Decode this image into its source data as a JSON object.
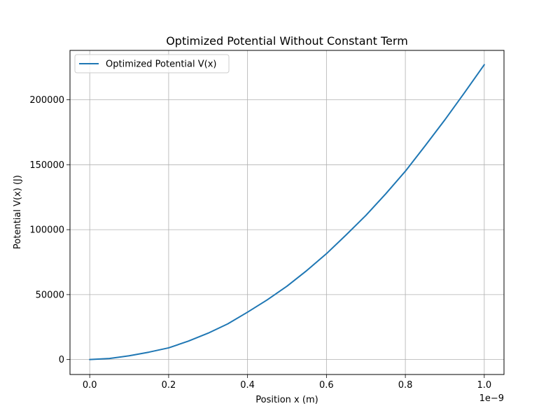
{
  "chart_data": {
    "type": "line",
    "title": "Optimized Potential Without Constant Term",
    "xlabel": "Position x (m)",
    "ylabel": "Potential V(x) (J)",
    "x_offset_label": "1e−9",
    "xlim": [
      -5e-11,
      1.05e-09
    ],
    "ylim": [
      -11500,
      238000
    ],
    "xticks": [
      0.0,
      2e-10,
      4e-10,
      6e-10,
      8e-10,
      1e-09
    ],
    "xtick_labels": [
      "0.0",
      "0.2",
      "0.4",
      "0.6",
      "0.8",
      "1.0"
    ],
    "yticks": [
      0,
      50000,
      100000,
      150000,
      200000
    ],
    "ytick_labels": [
      "0",
      "50000",
      "100000",
      "150000",
      "200000"
    ],
    "grid": true,
    "legend_position": "upper-left",
    "series": [
      {
        "name": "Optimized Potential V(x)",
        "color": "#1f77b4",
        "x": [
          0.0,
          5e-11,
          1e-10,
          1.5e-10,
          2e-10,
          2.5e-10,
          3e-10,
          3.5e-10,
          4e-10,
          4.5e-10,
          5e-10,
          5.5e-10,
          6e-10,
          6.5e-10,
          7e-10,
          7.5e-10,
          8e-10,
          8.5e-10,
          9e-10,
          9.5e-10,
          1e-09
        ],
        "y": [
          0,
          800,
          2900,
          5700,
          9000,
          14200,
          20300,
          27500,
          36500,
          46000,
          56500,
          68500,
          81500,
          96000,
          111000,
          127500,
          145000,
          164500,
          184500,
          205500,
          227000
        ]
      }
    ]
  }
}
